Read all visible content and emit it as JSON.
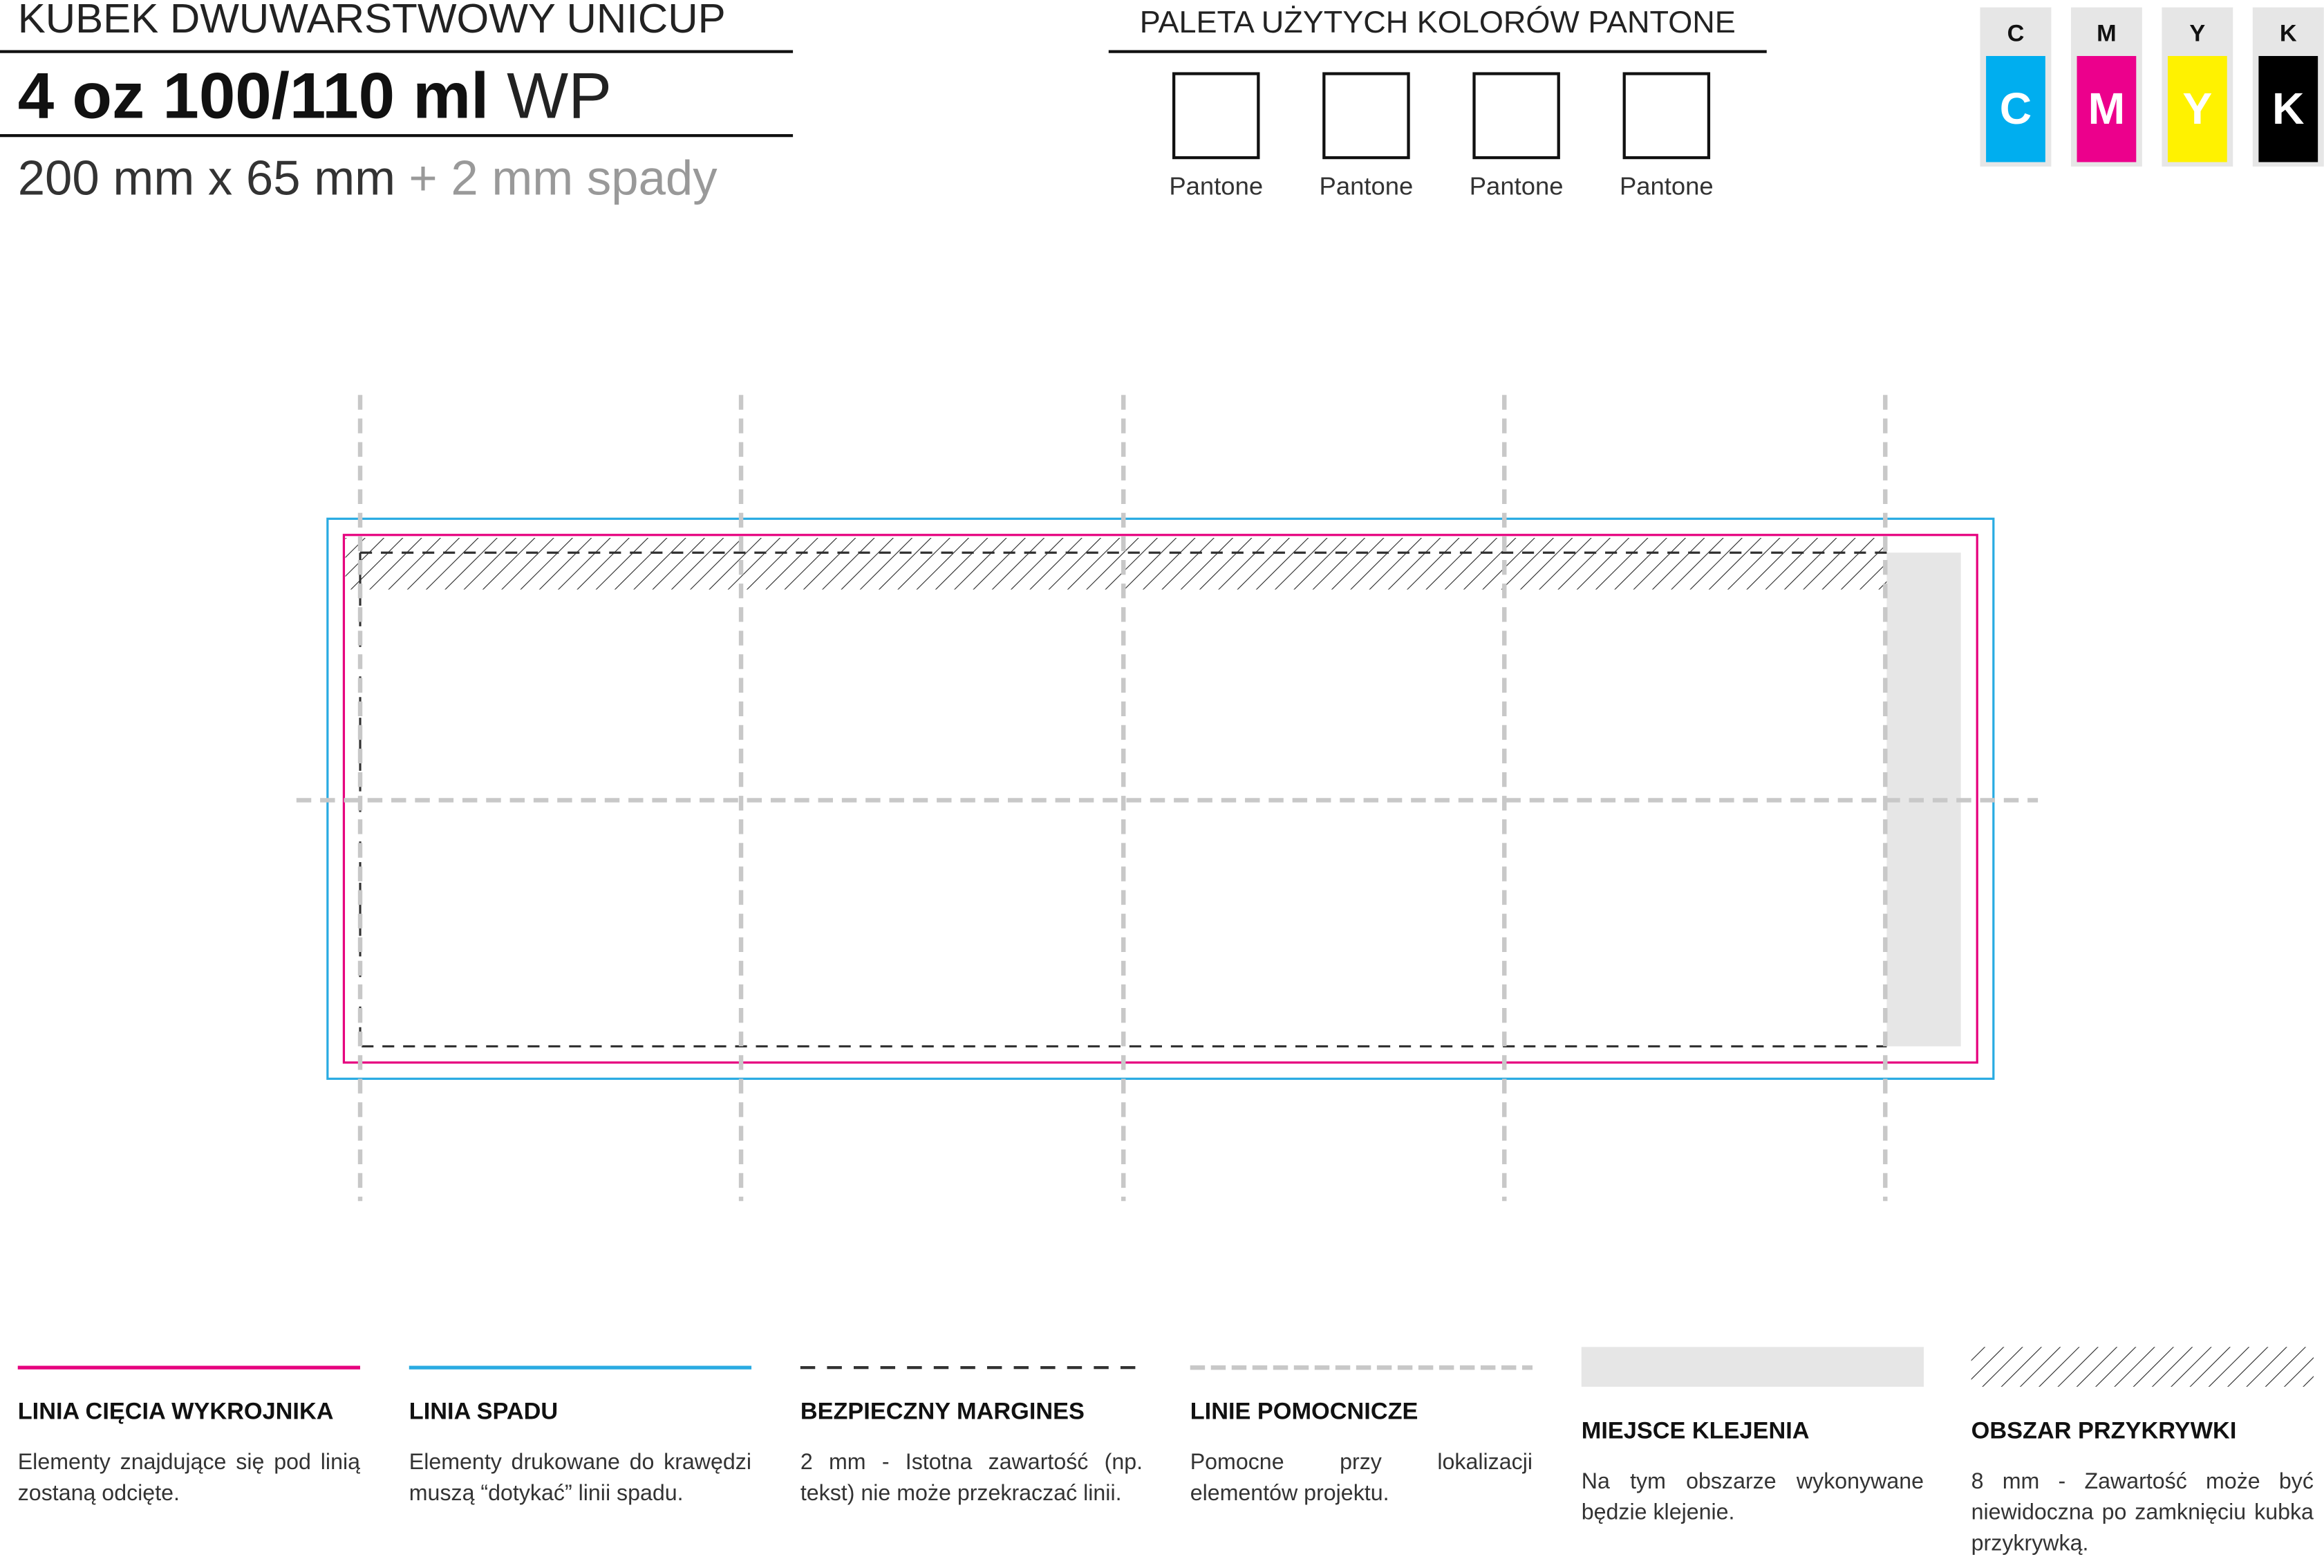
{
  "header": {
    "product": "KUBEK DWUWARSTWOWY UNICUP",
    "title_bold": "4 oz 100/110 ml",
    "title_light": "WP",
    "dimensions": "200 mm x 65 mm",
    "bleed": "+ 2 mm spady"
  },
  "palette": {
    "title": "PALETA UŻYTYCH KOLORÓW PANTONE",
    "swatches": [
      "Pantone",
      "Pantone",
      "Pantone",
      "Pantone"
    ]
  },
  "cmyk": [
    {
      "header": "C",
      "swatch": "C",
      "color": "#00aeef"
    },
    {
      "header": "M",
      "swatch": "M",
      "color": "#ec008c"
    },
    {
      "header": "Y",
      "swatch": "Y",
      "color": "#fff200"
    },
    {
      "header": "K",
      "swatch": "K",
      "color": "#000000"
    }
  ],
  "legend": [
    {
      "title": "LINIA CIĘCIA WYKROJNIKA",
      "text": "Elementy znajdujące się pod linią zostaną odcięte."
    },
    {
      "title": "LINIA SPADU",
      "text": "Elementy drukowane do krawędzi muszą “dotykać” linii spadu."
    },
    {
      "title": "BEZPIECZNY MARGINES",
      "text": "2 mm - Istotna zawartość (np. tekst) nie może przekraczać linii."
    },
    {
      "title": "LINIE POMOCNICZE",
      "text": "Pomocne przy lokalizacji elementów projektu."
    },
    {
      "title": "MIEJSCE KLEJENIA",
      "text": "Na tym obszarze wykonywane będzie klejenie."
    },
    {
      "title": "OBSZAR PRZYKRYWKI",
      "text": "8 mm - Zawartość może być niewidoczna po zamknięciu kubka przykrywką."
    }
  ]
}
